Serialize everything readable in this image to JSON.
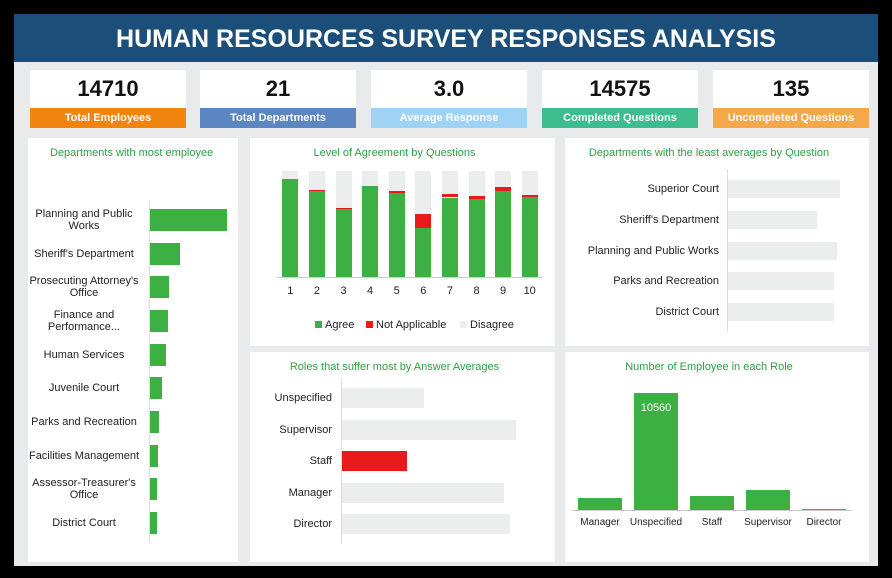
{
  "header": {
    "title": "HUMAN RESOURCES SURVEY RESPONSES ANALYSIS"
  },
  "kpis": [
    {
      "value": "14710",
      "label": "Total Employees",
      "color": "#f0840e"
    },
    {
      "value": "21",
      "label": "Total Departments",
      "color": "#5b86c1"
    },
    {
      "value": "3.0",
      "label": "Average Response",
      "color": "#9ed3f5"
    },
    {
      "value": "14575",
      "label": "Completed Questions",
      "color": "#3dbd8e"
    },
    {
      "value": "135",
      "label": "Uncompleted Questions",
      "color": "#f5a84a"
    }
  ],
  "chart_data": [
    {
      "type": "hbar",
      "title": "Departments with most employee",
      "categories": [
        "Planning and Public Works",
        "Sheriff's Department",
        "Prosecuting Attorney's Office",
        "Finance and Performance...",
        "Human Services",
        "Juvenile Court",
        "Parks and Recreation",
        "Facilities Management",
        "Assessor-Treasurer's Office",
        "District Court"
      ],
      "values": [
        5580,
        2170,
        1380,
        1300,
        1160,
        870,
        650,
        580,
        510,
        510
      ],
      "color": "#3cb043"
    },
    {
      "type": "stacked_column",
      "title": "Level of Agreement by Questions",
      "categories": [
        "1",
        "2",
        "3",
        "4",
        "5",
        "6",
        "7",
        "8",
        "9",
        "10"
      ],
      "series": [
        {
          "name": "Agree",
          "color": "#3cb043",
          "values": [
            92.5,
            81,
            64,
            86,
            79,
            46,
            75,
            74,
            81,
            75.5
          ]
        },
        {
          "name": "Not Applicable",
          "color": "#e81a1a",
          "values": [
            0,
            1.5,
            1.5,
            0,
            2,
            13,
            3,
            2,
            3.5,
            1.5
          ]
        },
        {
          "name": "Disagree",
          "color": "#eceeee",
          "values": [
            7.5,
            17.5,
            34.5,
            14,
            19,
            41,
            22,
            24,
            15.5,
            23
          ]
        }
      ],
      "legend": "bottom"
    },
    {
      "type": "hbar",
      "title": "Departments with the least averages by Question",
      "categories": [
        "Superior Court",
        "Sheriff's Department",
        "Planning and Public Works",
        "Parks and Recreation",
        "District Court"
      ],
      "values": [
        3.2,
        2.54,
        3.11,
        3.03,
        3.03
      ],
      "color": "#eceeee"
    },
    {
      "type": "hbar",
      "title": "Roles that suffer most by  Answer Averages",
      "categories": [
        "Unspecified",
        "Supervisor",
        "Staff",
        "Manager",
        "Director"
      ],
      "values": [
        1.41,
        3.0,
        1.12,
        2.79,
        2.9
      ],
      "colors": [
        "#eceeee",
        "#eceeee",
        "#e81a1a",
        "#eceeee",
        "#eceeee"
      ]
    },
    {
      "type": "column",
      "title": "Number of Employee in each Role",
      "categories": [
        "Manager",
        "Unspecified",
        "Staff",
        "Supervisor",
        "Director"
      ],
      "values": [
        1050,
        10560,
        1230,
        1770,
        100
      ],
      "value_labels": [
        null,
        "10560",
        null,
        null,
        null
      ],
      "color": "#3cb043"
    }
  ]
}
